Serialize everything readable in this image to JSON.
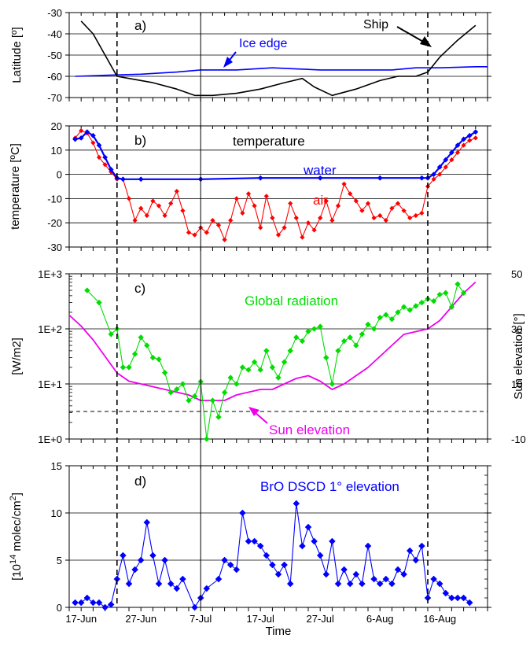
{
  "figure": {
    "xlabel": "Time",
    "x_tick_labels": [
      "17-Jun",
      "27-Jun",
      "7-Jul",
      "17-Jul",
      "27-Jul",
      "6-Aug",
      "16-Aug"
    ],
    "x_tick_days": [
      0,
      10,
      20,
      30,
      40,
      50,
      60
    ],
    "x_range_days": [
      -2,
      68
    ],
    "vertical_dashed_days": [
      6,
      58
    ],
    "vertical_solid_days": [
      20
    ],
    "colors": {
      "black": "#000000",
      "blue": "#0000ff",
      "red": "#ff0000",
      "green": "#00dd00",
      "magenta": "#ee00ee",
      "grid": "#000000"
    }
  },
  "panels": {
    "a": {
      "label": "a)",
      "ylabel": "Latitude [º]",
      "ylim": [
        -70,
        -30
      ],
      "yticks": [
        "-30",
        "-40",
        "-50",
        "-60",
        "-70"
      ],
      "ytick_values": [
        -30,
        -40,
        -50,
        -60,
        -70
      ],
      "annotations": {
        "ship": "Ship",
        "ice_edge": "Ice edge"
      }
    },
    "b": {
      "label": "b)",
      "title": "temperature",
      "ylabel": "temperature [ºC]",
      "ylim": [
        -30,
        20
      ],
      "yticks": [
        "20",
        "10",
        "0",
        "-10",
        "-20",
        "-30"
      ],
      "ytick_values": [
        20,
        10,
        0,
        -10,
        -20,
        -30
      ],
      "annotations": {
        "water": "water",
        "air": "air"
      }
    },
    "c": {
      "label": "c)",
      "ylabel": "[W/m2]",
      "ylabel_right": "Sun elevation [°]",
      "yticks": [
        "1E+3",
        "1E+2",
        "1E+1",
        "1E+0"
      ],
      "ytick_values": [
        1000,
        100,
        10,
        1
      ],
      "yticks_right": [
        "50",
        "30",
        "10",
        "-10"
      ],
      "ytick_right_values": [
        50,
        30,
        10,
        -10
      ],
      "ylim_log": [
        1,
        1000
      ],
      "ylim_right": [
        -10,
        50
      ],
      "horizon_dashed_sun_elevation": 0,
      "annotations": {
        "global": "Global radiation",
        "sun": "Sun elevation"
      }
    },
    "d": {
      "label": "d)",
      "title": "BrO DSCD 1° elevation",
      "ylabel_a": "[10",
      "ylabel_exp": "14",
      "ylabel_b": " molec/cm",
      "ylabel_exp2": "2",
      "ylabel_c": "]",
      "ylim": [
        0,
        15
      ],
      "yticks": [
        "15",
        "10",
        "5",
        "0"
      ],
      "ytick_values": [
        15,
        10,
        5,
        0
      ]
    }
  },
  "chart_data": [
    {
      "type": "line",
      "panel": "a",
      "title": "",
      "xlabel": "Time",
      "ylabel": "Latitude [º]",
      "ylim": [
        -70,
        -30
      ],
      "x_unit": "days after 17-Jun",
      "series": [
        {
          "name": "Ship",
          "x": [
            0,
            2,
            4,
            6,
            8,
            12,
            16,
            19,
            22,
            26,
            30,
            34,
            37,
            39,
            42,
            46,
            50,
            53,
            56,
            58,
            60,
            63,
            66
          ],
          "y": [
            -34,
            -40,
            -50,
            -60,
            -61,
            -63,
            -66,
            -69,
            -69,
            -68,
            -66,
            -63,
            -61,
            -65,
            -69,
            -66,
            -62,
            -60,
            -60,
            -58,
            -51,
            -43,
            -36
          ]
        },
        {
          "name": "Ice edge",
          "x": [
            -1,
            4,
            10,
            16,
            20,
            26,
            32,
            40,
            48,
            52,
            56,
            60,
            66,
            68
          ],
          "y": [
            -60,
            -59.5,
            -59,
            -58,
            -57,
            -57,
            -56,
            -57,
            -57,
            -57,
            -56,
            -56,
            -55.5,
            -55.5
          ]
        }
      ]
    },
    {
      "type": "line",
      "panel": "b",
      "title": "temperature",
      "xlabel": "Time",
      "ylabel": "temperature [ºC]",
      "ylim": [
        -30,
        20
      ],
      "x_unit": "days after 17-Jun",
      "series": [
        {
          "name": "water",
          "x": [
            -1,
            0,
            1,
            2,
            3,
            4,
            5,
            6,
            7,
            10,
            20,
            30,
            40,
            50,
            57,
            58,
            59,
            60,
            61,
            62,
            63,
            64,
            65,
            66
          ],
          "y": [
            14.5,
            15,
            17.5,
            16,
            12,
            7,
            2,
            -1.5,
            -2,
            -2,
            -2,
            -1.5,
            -1.5,
            -1.5,
            -1.5,
            -1.5,
            0,
            3,
            6,
            9,
            12,
            14.5,
            16,
            17.5
          ]
        },
        {
          "name": "air",
          "x": [
            -1,
            0,
            1,
            2,
            3,
            4,
            5,
            6,
            7,
            8,
            9,
            10,
            11,
            12,
            13,
            14,
            15,
            16,
            17,
            18,
            19,
            20,
            21,
            22,
            23,
            24,
            25,
            26,
            27,
            28,
            29,
            30,
            31,
            32,
            33,
            34,
            35,
            36,
            37,
            38,
            39,
            40,
            41,
            42,
            43,
            44,
            45,
            46,
            47,
            48,
            49,
            50,
            51,
            52,
            53,
            54,
            55,
            56,
            57,
            58,
            59,
            60,
            61,
            62,
            63,
            64,
            65,
            66
          ],
          "y": [
            15,
            18,
            17,
            13,
            7,
            4,
            1,
            -2,
            -2,
            -10,
            -19,
            -14,
            -17,
            -11,
            -13,
            -17,
            -12,
            -7,
            -15,
            -24,
            -25,
            -22,
            -24,
            -19,
            -21,
            -27,
            -19,
            -10,
            -16,
            -8,
            -13,
            -22,
            -9,
            -18,
            -25,
            -22,
            -12,
            -18,
            -26,
            -20,
            -23,
            -18,
            -11,
            -19,
            -13,
            -4,
            -8,
            -11,
            -15,
            -12,
            -18,
            -17,
            -19,
            -14,
            -12,
            -15,
            -18,
            -17,
            -16,
            -5,
            -2,
            0,
            3,
            6,
            9,
            12,
            14,
            15
          ]
        }
      ]
    },
    {
      "type": "line",
      "panel": "c",
      "title": "",
      "xlabel": "Time",
      "ylabel": "[W/m2]",
      "ylim": [
        1,
        1000
      ],
      "yscale": "log",
      "x_unit": "days after 17-Jun",
      "series": [
        {
          "name": "Global radiation",
          "x": [
            1,
            3,
            5,
            6,
            7,
            8,
            9,
            10,
            11,
            12,
            13,
            14,
            15,
            16,
            17,
            18,
            19,
            20,
            21,
            22,
            23,
            24,
            25,
            26,
            27,
            28,
            29,
            30,
            31,
            32,
            33,
            34,
            35,
            36,
            37,
            38,
            39,
            40,
            41,
            42,
            43,
            44,
            45,
            46,
            47,
            48,
            49,
            50,
            51,
            52,
            53,
            54,
            55,
            56,
            57,
            58,
            59,
            60,
            61,
            62,
            63,
            64
          ],
          "y": [
            500,
            300,
            80,
            100,
            20,
            20,
            35,
            70,
            50,
            30,
            28,
            16,
            7,
            8,
            10,
            5,
            6,
            11,
            1,
            5,
            2.5,
            7,
            13,
            10,
            20,
            18,
            25,
            18,
            40,
            20,
            13,
            25,
            40,
            70,
            60,
            90,
            100,
            110,
            30,
            10,
            40,
            60,
            70,
            50,
            80,
            120,
            100,
            160,
            180,
            150,
            200,
            250,
            220,
            260,
            300,
            350,
            320,
            420,
            450,
            250,
            650,
            450
          ]
        }
      ],
      "secondary_axis": {
        "ylabel": "Sun elevation [°]",
        "ylim": [
          -10,
          50
        ],
        "series": [
          {
            "name": "Sun elevation",
            "x": [
              -2,
              0,
              2,
              4,
              6,
              8,
              10,
              12,
              14,
              16,
              18,
              20,
              22,
              24,
              26,
              28,
              30,
              32,
              34,
              36,
              38,
              40,
              42,
              44,
              46,
              48,
              50,
              52,
              54,
              56,
              58,
              60,
              62,
              64,
              66
            ],
            "y": [
              35,
              31,
              26,
              20,
              14,
              11,
              10,
              9,
              8,
              7,
              6,
              4,
              4,
              4,
              6,
              7,
              8,
              8,
              10,
              12,
              13,
              11,
              8,
              10,
              13,
              16,
              20,
              24,
              28,
              29,
              30,
              33,
              38,
              43,
              47
            ]
          }
        ]
      }
    },
    {
      "type": "line",
      "panel": "d",
      "title": "BrO DSCD 1° elevation",
      "xlabel": "Time",
      "ylabel": "[10^14 molec/cm2]",
      "ylim": [
        0,
        15
      ],
      "x_unit": "days after 17-Jun",
      "series": [
        {
          "name": "BrO DSCD 1° elevation",
          "x": [
            -1,
            0,
            1,
            2,
            3,
            4,
            5,
            6,
            7,
            8,
            9,
            10,
            11,
            12,
            13,
            14,
            15,
            16,
            17,
            19,
            20,
            21,
            23,
            24,
            25,
            26,
            27,
            28,
            29,
            30,
            31,
            32,
            33,
            34,
            35,
            36,
            37,
            38,
            39,
            40,
            41,
            42,
            43,
            44,
            45,
            46,
            47,
            48,
            49,
            50,
            51,
            52,
            53,
            54,
            55,
            56,
            57,
            58,
            59,
            60,
            61,
            62,
            63,
            64,
            65
          ],
          "y": [
            0.5,
            0.5,
            1,
            0.5,
            0.5,
            0,
            0.3,
            3,
            5.5,
            2.5,
            4,
            5,
            9,
            5.5,
            2.5,
            5,
            2.5,
            2,
            3,
            0,
            1,
            2,
            3,
            5,
            4.5,
            4,
            10,
            7,
            7,
            6.5,
            5.5,
            4.5,
            3.5,
            4.5,
            2.5,
            11,
            6.5,
            8.5,
            7,
            5.5,
            3.5,
            7,
            2.5,
            4,
            2.5,
            3.5,
            2.5,
            6.5,
            3,
            2.5,
            3,
            2.5,
            4,
            3.5,
            6,
            5,
            6.5,
            1,
            3,
            2.5,
            1.5,
            1,
            1,
            1,
            0.5
          ]
        }
      ]
    }
  ]
}
